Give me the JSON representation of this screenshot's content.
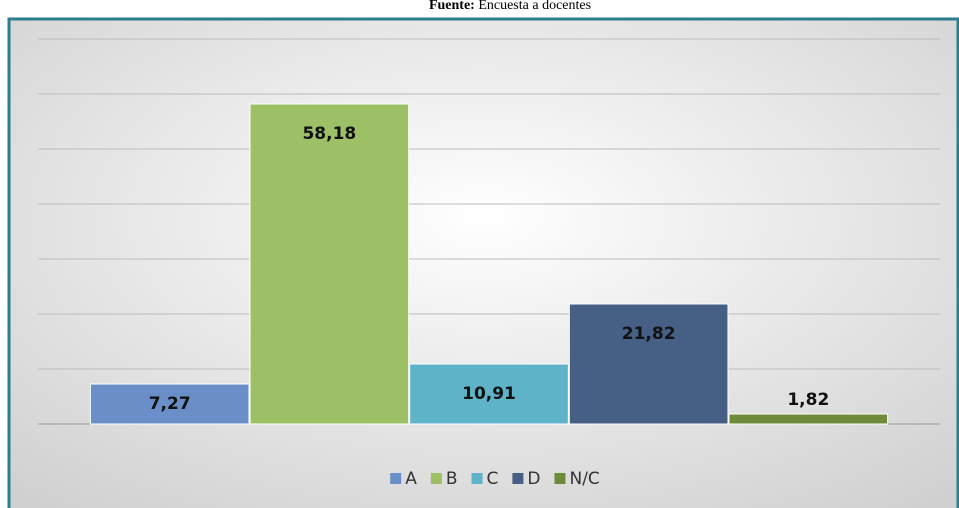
{
  "chart_data": {
    "type": "bar",
    "title_bold": "Fuente:",
    "title": "Encuesta a docentes",
    "categories": [
      null
    ],
    "series": [
      {
        "name": "A",
        "color": "#6a8fc8",
        "values": [
          7.27
        ],
        "value_labels": [
          "7,27"
        ]
      },
      {
        "name": "B",
        "color": "#9dbf66",
        "values": [
          58.18
        ],
        "value_labels": [
          "58,18"
        ]
      },
      {
        "name": "C",
        "color": "#5fb3c9",
        "values": [
          10.91
        ],
        "value_labels": [
          "10,91"
        ]
      },
      {
        "name": "D",
        "color": "#465f85",
        "values": [
          21.82
        ],
        "value_labels": [
          "21,82"
        ]
      },
      {
        "name": "N/C",
        "color": "#6e8a3b",
        "values": [
          1.82
        ],
        "value_labels": [
          "1,82"
        ]
      }
    ],
    "ylim": [
      0,
      70
    ],
    "yticks": [
      0,
      10,
      20,
      30,
      40,
      50,
      60,
      70
    ],
    "grid": true,
    "legend": "bottom"
  }
}
